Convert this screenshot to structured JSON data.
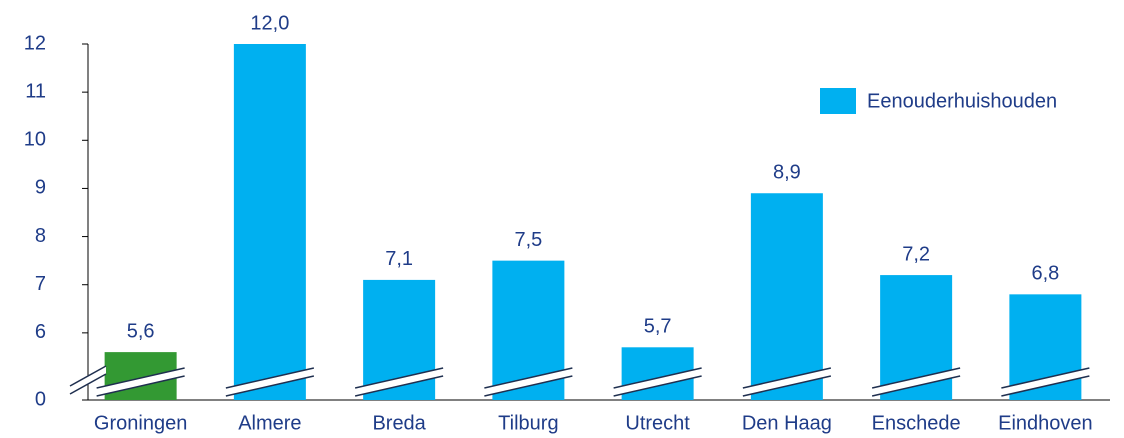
{
  "chart_data": {
    "type": "bar",
    "categories": [
      "Groningen",
      "Almere",
      "Breda",
      "Tilburg",
      "Utrecht",
      "Den Haag",
      "Enschede",
      "Eindhoven"
    ],
    "series": [
      {
        "name": "Eenouderhuishouden",
        "color": "#00b0f0",
        "values": [
          5.6,
          12.0,
          7.1,
          7.5,
          5.7,
          8.9,
          7.2,
          6.8
        ],
        "value_labels": [
          "5,6",
          "12,0",
          "7,1",
          "7,5",
          "5,7",
          "8,9",
          "7,2",
          "6,8"
        ]
      }
    ],
    "colors": [
      "#339933",
      "#00b0f0",
      "#00b0f0",
      "#00b0f0",
      "#00b0f0",
      "#00b0f0",
      "#00b0f0",
      "#00b0f0"
    ],
    "ylim": [
      0,
      12
    ],
    "yticks": [
      0,
      6,
      7,
      8,
      9,
      10,
      11,
      12
    ],
    "ybreak": [
      0,
      5
    ],
    "grid": false,
    "legend": "upper right"
  }
}
